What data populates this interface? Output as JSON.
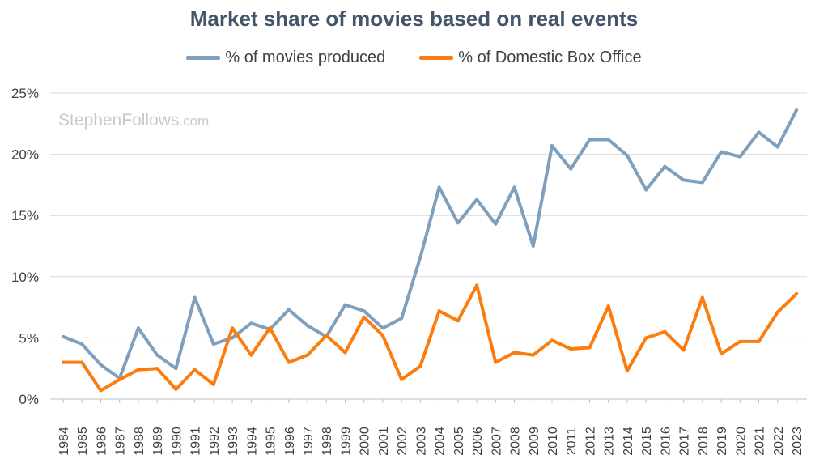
{
  "chart_data": {
    "type": "line",
    "title": "Market share of movies based on real events",
    "xlabel": "",
    "ylabel": "",
    "ylim": [
      0,
      25
    ],
    "y_ticks": [
      0,
      5,
      10,
      15,
      20,
      25
    ],
    "y_tick_labels": [
      "0%",
      "5%",
      "10%",
      "15%",
      "20%",
      "25%"
    ],
    "legend_position": "top-center",
    "grid": true,
    "categories": [
      "1984",
      "1985",
      "1986",
      "1987",
      "1988",
      "1989",
      "1990",
      "1991",
      "1992",
      "1993",
      "1994",
      "1995",
      "1996",
      "1997",
      "1998",
      "1999",
      "2000",
      "2001",
      "2002",
      "2003",
      "2004",
      "2005",
      "2006",
      "2007",
      "2008",
      "2009",
      "2010",
      "2011",
      "2012",
      "2013",
      "2014",
      "2015",
      "2016",
      "2017",
      "2018",
      "2019",
      "2020",
      "2021",
      "2022",
      "2023"
    ],
    "series": [
      {
        "name": "% of movies produced",
        "color": "#7f9fbd",
        "values": [
          5.1,
          4.5,
          2.8,
          1.7,
          5.8,
          3.6,
          2.5,
          8.3,
          4.5,
          5.0,
          6.2,
          5.7,
          7.3,
          6.0,
          5.1,
          7.7,
          7.2,
          5.8,
          6.6,
          11.6,
          17.3,
          14.4,
          16.3,
          14.3,
          17.3,
          12.5,
          20.7,
          18.8,
          21.2,
          21.2,
          19.9,
          17.1,
          19.0,
          17.9,
          17.7,
          20.2,
          19.8,
          21.8,
          20.6,
          23.6
        ]
      },
      {
        "name": "% of Domestic Box Office",
        "color": "#fa7d0e",
        "values": [
          3.0,
          3.0,
          0.7,
          1.6,
          2.4,
          2.5,
          0.8,
          2.4,
          1.2,
          5.8,
          3.6,
          5.8,
          3.0,
          3.6,
          5.2,
          3.8,
          6.7,
          5.2,
          1.6,
          2.7,
          7.2,
          6.4,
          9.3,
          3.0,
          3.8,
          3.6,
          4.8,
          4.1,
          4.2,
          7.6,
          2.3,
          5.0,
          5.5,
          4.0,
          8.3,
          3.7,
          4.7,
          4.7,
          7.1,
          8.6
        ]
      }
    ]
  },
  "watermark": {
    "name": "StephenFollows",
    "suffix": ".com"
  }
}
